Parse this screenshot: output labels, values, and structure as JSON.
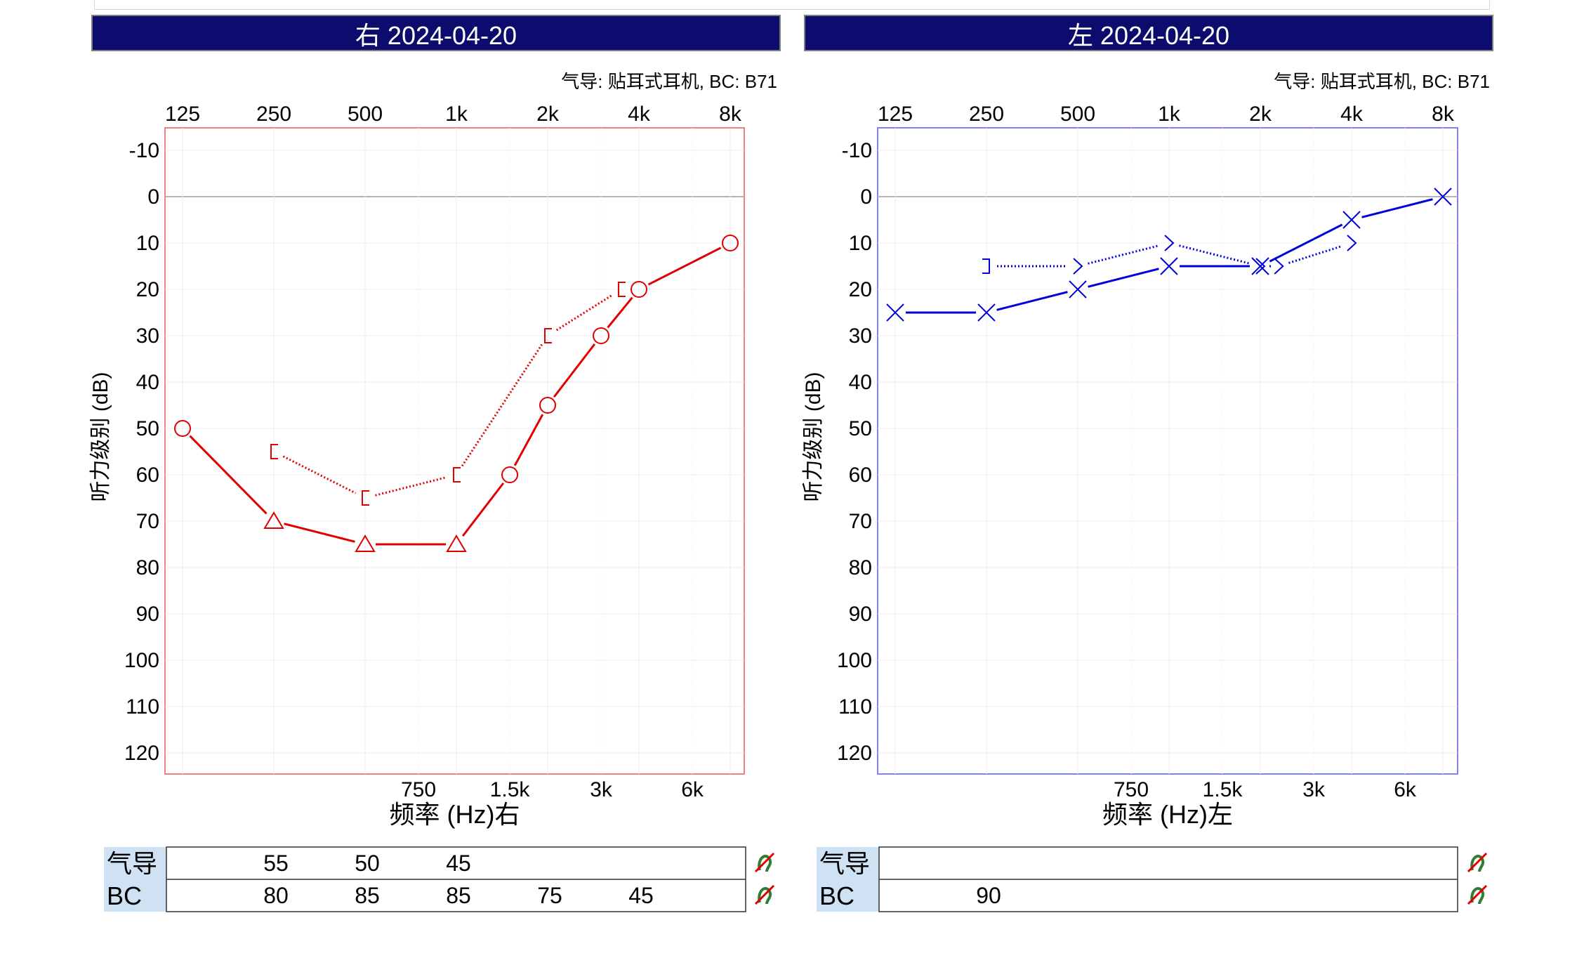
{
  "panels": [
    {
      "title": "右 2024-04-20",
      "transducer": "气导: 贴耳式耳机, BC: B71",
      "ylabel": "听力级别 (dB)",
      "xlabel": "频率 (Hz)右",
      "color": "#e00000",
      "frame_color": "#f08080",
      "table": {
        "row1_label": "气导",
        "row2_label": "BC",
        "row1_values": [
          "",
          "55",
          "50",
          "45",
          "",
          "",
          "",
          ""
        ],
        "row2_values": [
          "",
          "80",
          "85",
          "85",
          "75",
          "45",
          "",
          ""
        ]
      }
    },
    {
      "title": "左 2024-04-20",
      "transducer": "气导: 贴耳式耳机, BC: B71",
      "ylabel": "听力级别 (dB)",
      "xlabel": "频率 (Hz)左",
      "color": "#0000dd",
      "frame_color": "#8080ff",
      "table": {
        "row1_label": "气导",
        "row2_label": "BC",
        "row1_values": [
          "",
          "",
          "",
          "",
          "",
          "",
          "",
          ""
        ],
        "row2_values": [
          "",
          "90",
          "",
          "",
          "",
          "",
          "",
          ""
        ]
      }
    }
  ],
  "header_bg": "#0c0c6e",
  "table_label_bg": "#cfe2f3",
  "chart_data": [
    {
      "type": "line",
      "ear": "right",
      "x_top_ticks": [
        "125",
        "250",
        "500",
        "1k",
        "2k",
        "4k",
        "8k"
      ],
      "x_bottom_ticks": [
        "750",
        "1.5k",
        "3k",
        "6k"
      ],
      "y_ticks": [
        "-10",
        "0",
        "10",
        "20",
        "30",
        "40",
        "50",
        "60",
        "70",
        "80",
        "90",
        "100",
        "110",
        "120"
      ],
      "ylim": [
        -10,
        120
      ],
      "y_inverted": true,
      "x_scale": "log2",
      "grid": true,
      "series": [
        {
          "symbol": "circle/triangle",
          "line": "solid",
          "points": [
            {
              "x": 125,
              "y": 50,
              "marker": "circle"
            },
            {
              "x": 250,
              "y": 70,
              "marker": "triangle"
            },
            {
              "x": 500,
              "y": 75,
              "marker": "triangle"
            },
            {
              "x": 1000,
              "y": 75,
              "marker": "triangle"
            },
            {
              "x": 1500,
              "y": 60,
              "marker": "circle"
            },
            {
              "x": 2000,
              "y": 45,
              "marker": "circle"
            },
            {
              "x": 3000,
              "y": 30,
              "marker": "circle"
            },
            {
              "x": 4000,
              "y": 20,
              "marker": "circle"
            },
            {
              "x": 8000,
              "y": 10,
              "marker": "circle"
            }
          ]
        },
        {
          "symbol": "bracket-left",
          "line": "dotted",
          "points": [
            {
              "x": 250,
              "y": 55,
              "marker": "bracket-left"
            },
            {
              "x": 500,
              "y": 65,
              "marker": "bracket-left"
            },
            {
              "x": 1000,
              "y": 60,
              "marker": "bracket-left"
            },
            {
              "x": 2000,
              "y": 30,
              "marker": "bracket-left"
            },
            {
              "x": 3500,
              "y": 20,
              "marker": "bracket-left"
            }
          ]
        }
      ]
    },
    {
      "type": "line",
      "ear": "left",
      "x_top_ticks": [
        "125",
        "250",
        "500",
        "1k",
        "2k",
        "4k",
        "8k"
      ],
      "x_bottom_ticks": [
        "750",
        "1.5k",
        "3k",
        "6k"
      ],
      "y_ticks": [
        "-10",
        "0",
        "10",
        "20",
        "30",
        "40",
        "50",
        "60",
        "70",
        "80",
        "90",
        "100",
        "110",
        "120"
      ],
      "ylim": [
        -10,
        120
      ],
      "y_inverted": true,
      "x_scale": "log2",
      "grid": true,
      "series": [
        {
          "symbol": "cross",
          "line": "solid",
          "points": [
            {
              "x": 125,
              "y": 25,
              "marker": "cross"
            },
            {
              "x": 250,
              "y": 25,
              "marker": "cross"
            },
            {
              "x": 500,
              "y": 20,
              "marker": "cross"
            },
            {
              "x": 1000,
              "y": 15,
              "marker": "cross"
            },
            {
              "x": 2000,
              "y": 15,
              "marker": "cross"
            },
            {
              "x": 4000,
              "y": 5,
              "marker": "cross"
            },
            {
              "x": 8000,
              "y": 0,
              "marker": "cross"
            }
          ]
        },
        {
          "symbol": "bracket-right",
          "line": "dotted",
          "points": [
            {
              "x": 250,
              "y": 15,
              "marker": "bracket-right"
            },
            {
              "x": 500,
              "y": 15,
              "marker": "chevron-right"
            },
            {
              "x": 1000,
              "y": 10,
              "marker": "chevron-right"
            },
            {
              "x": 2000,
              "y": 15,
              "marker": "chevron-right"
            },
            {
              "x": 2300,
              "y": 15,
              "marker": "chevron-right"
            },
            {
              "x": 4000,
              "y": 10,
              "marker": "chevron-right"
            }
          ]
        }
      ]
    }
  ]
}
